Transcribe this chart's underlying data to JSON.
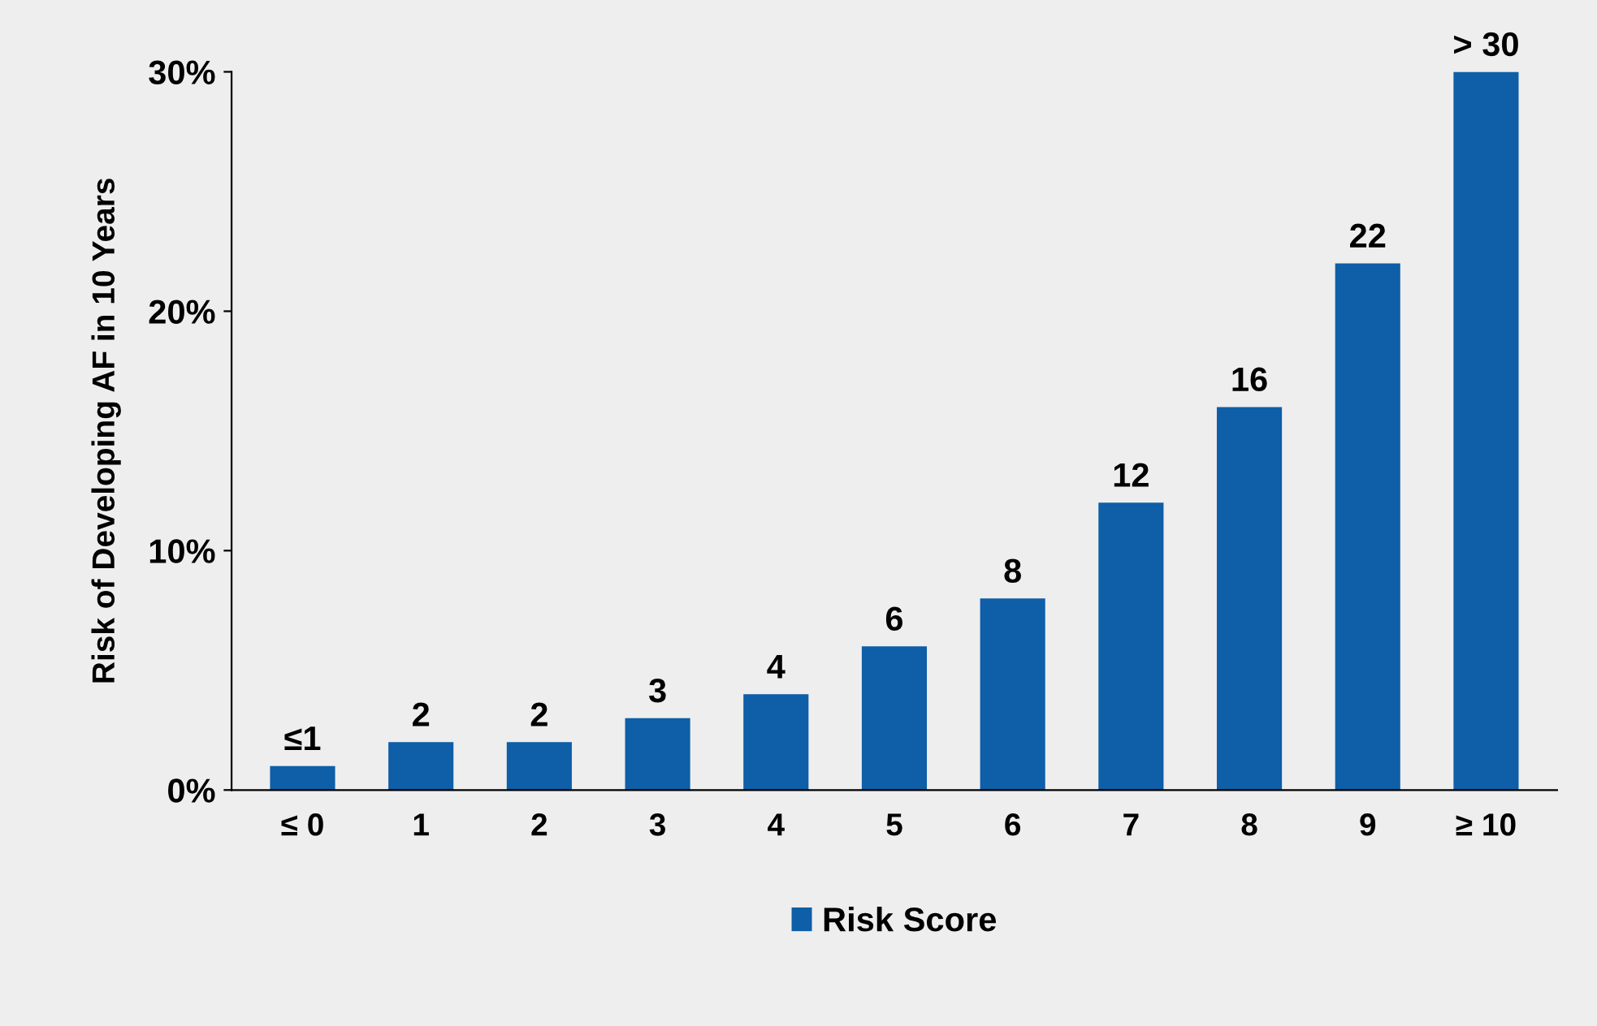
{
  "chart_data": {
    "type": "bar",
    "ylabel": "Risk of Developing AF in 10 Years",
    "categories": [
      "≤ 0",
      "1",
      "2",
      "3",
      "4",
      "5",
      "6",
      "7",
      "8",
      "9",
      "≥ 10"
    ],
    "series": [
      {
        "name": "Risk Score",
        "color": "#0e5ea8",
        "values": [
          1,
          2,
          2,
          3,
          4,
          6,
          8,
          12,
          16,
          22,
          30
        ],
        "value_labels": [
          "≤1",
          "2",
          "2",
          "3",
          "4",
          "6",
          "8",
          "12",
          "16",
          "22",
          "> 30"
        ]
      }
    ],
    "ylim": [
      0,
      30
    ],
    "yticks": [
      {
        "value": 0,
        "label": "0%"
      },
      {
        "value": 10,
        "label": "10%"
      },
      {
        "value": 20,
        "label": "20%"
      },
      {
        "value": 30,
        "label": "30%"
      }
    ],
    "grid": false,
    "legend": "bottom"
  }
}
